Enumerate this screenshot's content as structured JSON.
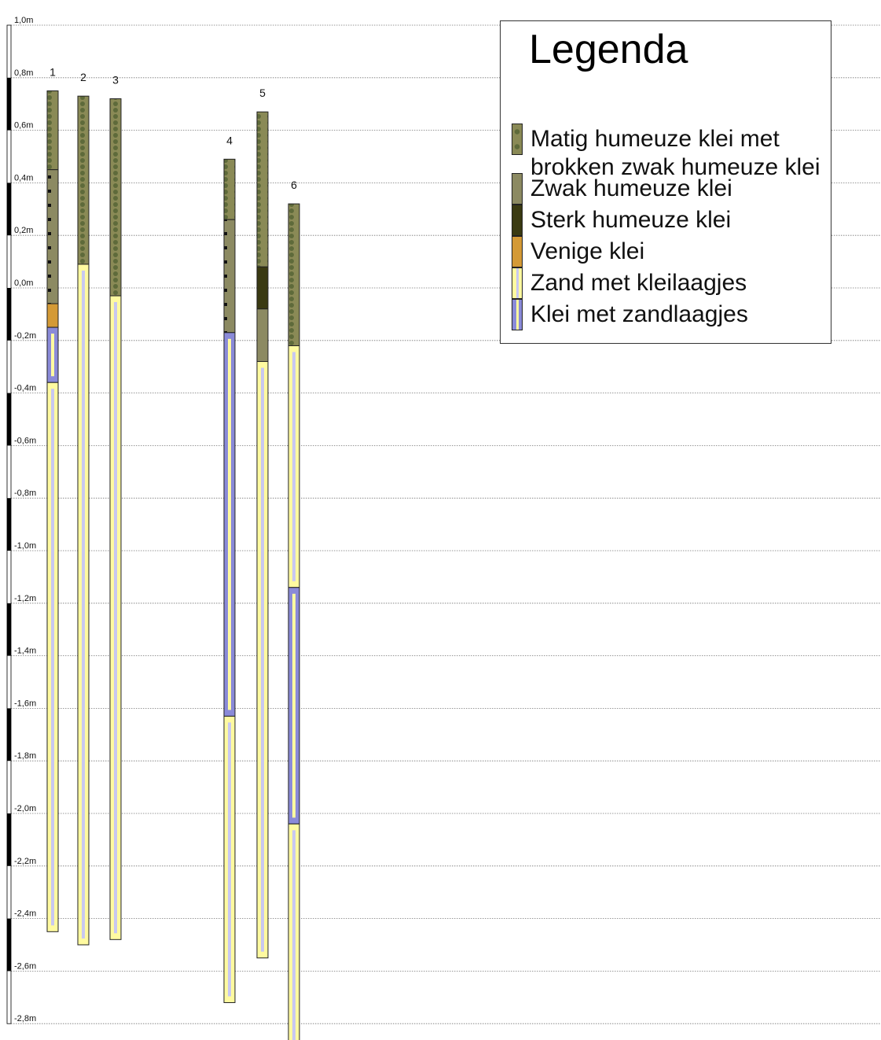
{
  "colors": {
    "matig": "#8a8a56",
    "matig_dot": "#5e6a3a",
    "zwak": "#8c8a62",
    "sterk": "#3a3a12",
    "venige": "#d49a36",
    "zand": "#fffaa0",
    "zand_inner": "#c8c8f0",
    "klei": "#8a8ad8",
    "klei_inner": "#fffaa0",
    "gridline": "#777777"
  },
  "axis": {
    "ticks": [
      "1,0m",
      "0,8m",
      "0,6m",
      "0,4m",
      "0,2m",
      "0,0m",
      "-0,2m",
      "-0,4m",
      "-0,6m",
      "-0,8m",
      "-1,0m",
      "-1,2m",
      "-1,4m",
      "-1,6m",
      "-1,8m",
      "-2,0m",
      "-2,2m",
      "-2,4m",
      "-2,6m",
      "-2,8m"
    ],
    "values": [
      1.0,
      0.8,
      0.6,
      0.4,
      0.2,
      0.0,
      -0.2,
      -0.4,
      -0.6,
      -0.8,
      -1.0,
      -1.2,
      -1.4,
      -1.6,
      -1.8,
      -2.0,
      -2.2,
      -2.4,
      -2.6,
      -2.8
    ]
  },
  "legend": {
    "title": "Legenda",
    "items": [
      {
        "key": "matig",
        "label": "Matig humeuze klei met",
        "label2": "brokken zwak humeuze klei"
      },
      {
        "key": "zwak",
        "label": "Zwak humeuze klei"
      },
      {
        "key": "sterk",
        "label": "Sterk humeuze klei"
      },
      {
        "key": "venige",
        "label": "Venige klei"
      },
      {
        "key": "zand",
        "label": "Zand met kleilaagjes"
      },
      {
        "key": "klei",
        "label": "Klei met zandlaagjes"
      }
    ]
  },
  "boreholes": [
    {
      "label": "1",
      "layers": [
        {
          "type": "matig",
          "top": 0.75,
          "bottom": 0.45
        },
        {
          "type": "zwak_dots",
          "top": 0.45,
          "bottom": -0.06
        },
        {
          "type": "venige",
          "top": -0.06,
          "bottom": -0.15
        },
        {
          "type": "klei",
          "top": -0.15,
          "bottom": -0.36
        },
        {
          "type": "zand",
          "top": -0.36,
          "bottom": -2.45
        }
      ]
    },
    {
      "label": "2",
      "layers": [
        {
          "type": "matig",
          "top": 0.73,
          "bottom": 0.09
        },
        {
          "type": "zand",
          "top": 0.09,
          "bottom": -2.5
        }
      ]
    },
    {
      "label": "3",
      "layers": [
        {
          "type": "matig",
          "top": 0.72,
          "bottom": -0.03
        },
        {
          "type": "zand",
          "top": -0.03,
          "bottom": -2.48
        }
      ]
    },
    {
      "label": "4",
      "layers": [
        {
          "type": "matig",
          "top": 0.49,
          "bottom": 0.26
        },
        {
          "type": "zwak_dots",
          "top": 0.26,
          "bottom": -0.17
        },
        {
          "type": "klei",
          "top": -0.17,
          "bottom": -1.63
        },
        {
          "type": "zand",
          "top": -1.63,
          "bottom": -2.72
        }
      ]
    },
    {
      "label": "5",
      "layers": [
        {
          "type": "matig",
          "top": 0.67,
          "bottom": 0.08
        },
        {
          "type": "sterk",
          "top": 0.08,
          "bottom": -0.08
        },
        {
          "type": "zwak",
          "top": -0.08,
          "bottom": -0.28
        },
        {
          "type": "zand",
          "top": -0.28,
          "bottom": -2.55
        }
      ]
    },
    {
      "label": "6",
      "layers": [
        {
          "type": "matig",
          "top": 0.32,
          "bottom": -0.22
        },
        {
          "type": "zand",
          "top": -0.22,
          "bottom": -1.14
        },
        {
          "type": "klei",
          "top": -1.14,
          "bottom": -2.04
        },
        {
          "type": "zand",
          "top": -2.04,
          "bottom": -2.9
        }
      ]
    }
  ]
}
